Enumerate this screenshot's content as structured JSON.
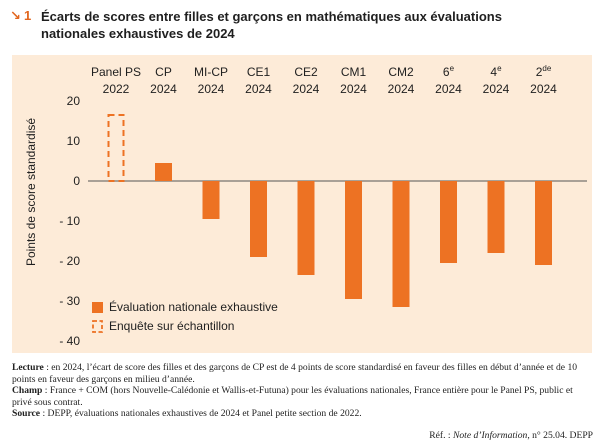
{
  "figure": {
    "arrow": "↘",
    "number": "1",
    "title": "Écarts de scores entre filles et garçons en mathématiques aux évaluations nationales exhaustives de 2024"
  },
  "colors": {
    "accent": "#ed7223",
    "panel_bg": "#fdebd8",
    "survey_outline": "#ed7223"
  },
  "chart_data": {
    "type": "bar",
    "categories": [
      {
        "label": "Panel PS",
        "sup": "",
        "year": "2022"
      },
      {
        "label": "CP",
        "sup": "",
        "year": "2024"
      },
      {
        "label": "MI-CP",
        "sup": "",
        "year": "2024"
      },
      {
        "label": "CE1",
        "sup": "",
        "year": "2024"
      },
      {
        "label": "CE2",
        "sup": "",
        "year": "2024"
      },
      {
        "label": "CM1",
        "sup": "",
        "year": "2024"
      },
      {
        "label": "CM2",
        "sup": "",
        "year": "2024"
      },
      {
        "label": "6",
        "sup": "e",
        "year": "2024"
      },
      {
        "label": "4",
        "sup": "e",
        "year": "2024"
      },
      {
        "label": "2",
        "sup": "de",
        "year": "2024"
      }
    ],
    "series": [
      {
        "name": "Évaluation nationale exhaustive",
        "style": "solid",
        "values": [
          null,
          4.5,
          -9.5,
          -19,
          -23.5,
          -29.5,
          -31.5,
          -20.5,
          -18,
          -21
        ]
      },
      {
        "name": "Enquête sur échantillon",
        "style": "dashed-outline",
        "values": [
          16.5,
          null,
          null,
          null,
          null,
          null,
          null,
          null,
          null,
          null
        ]
      }
    ],
    "ylabel": "Points de score standardisé",
    "ylim": [
      -40,
      20
    ],
    "yticks": [
      20,
      10,
      0,
      -10,
      -20,
      -30,
      -40
    ],
    "grid": false,
    "legend_position": "bottom-left"
  },
  "notes": [
    {
      "label": "Lecture",
      "text": " : en 2024, l’écart de score des filles et des garçons de CP est de 4 points de score standardisé en faveur des filles en début d’année et de 10 points en faveur des garçons en milieu d’année."
    },
    {
      "label": "Champ",
      "text": " : France + COM (hors Nouvelle-Calédonie et Wallis-et-Futuna) pour les évaluations nationales, France entière pour le Panel PS, public et privé sous contrat."
    },
    {
      "label": "Source",
      "text": " : DEPP, évaluations nationales exhaustives de 2024 et Panel petite section de 2022."
    }
  ],
  "reference": {
    "prefix": "Réf. : ",
    "publication": "Note d’Information",
    "suffix": ", n° 25.04. DEPP"
  }
}
